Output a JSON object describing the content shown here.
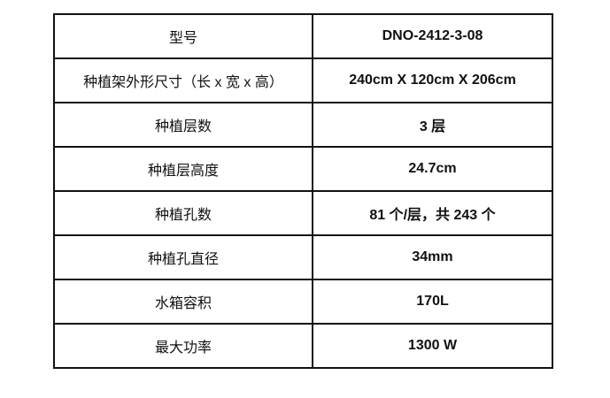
{
  "rows": [
    {
      "label": "型号",
      "value": "DNO-2412-3-08"
    },
    {
      "label": "种植架外形尺寸（长 x 宽 x 高）",
      "value": "240cm X 120cm X 206cm"
    },
    {
      "label": "种植层数",
      "value": "3 层"
    },
    {
      "label": "种植层高度",
      "value": "24.7cm"
    },
    {
      "label": "种植孔数",
      "value": "81 个/层，共  243 个"
    },
    {
      "label": "种植孔直径",
      "value": "34mm"
    },
    {
      "label": "水箱容积",
      "value": "170L"
    },
    {
      "label": "最大功率",
      "value": "1300 W"
    }
  ]
}
